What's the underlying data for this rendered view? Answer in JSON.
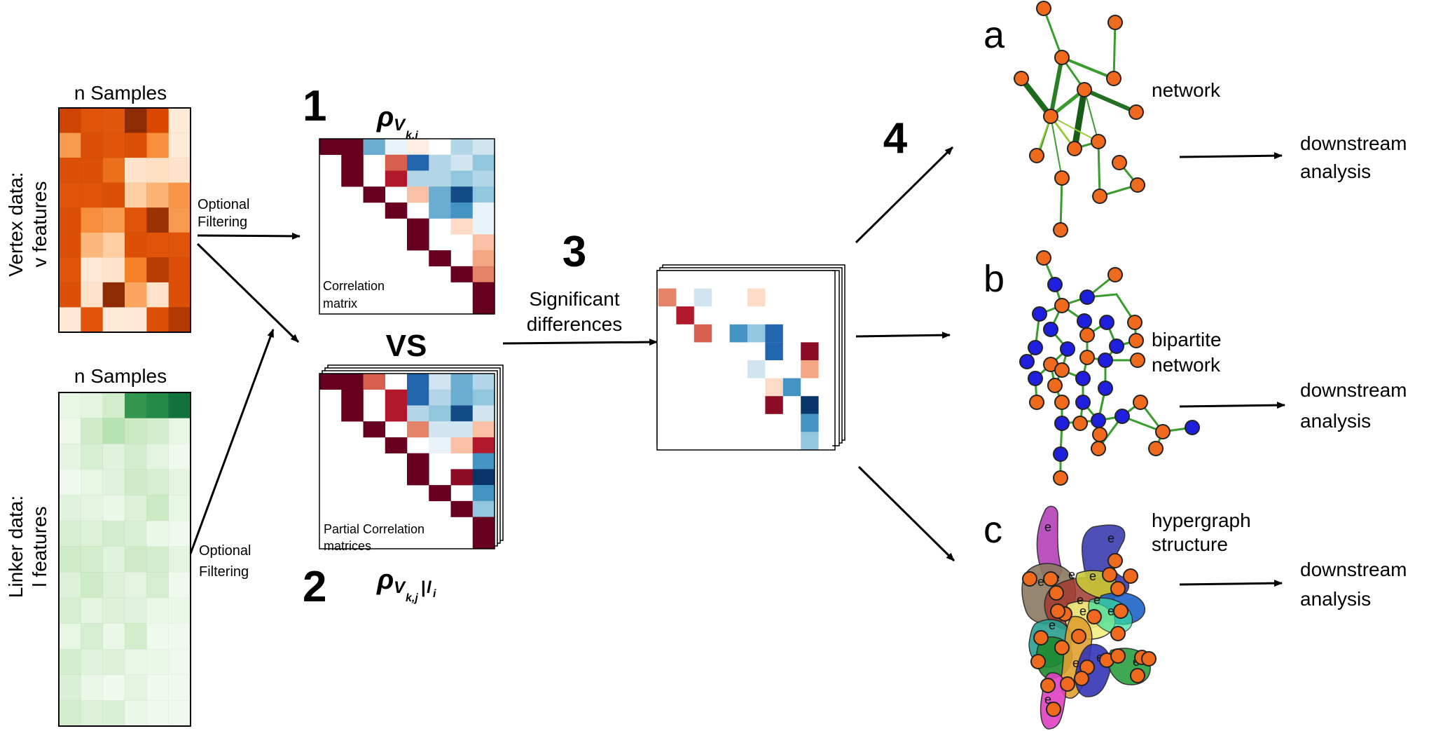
{
  "vertex_panel": {
    "samples_label": "n Samples",
    "axis_label_line1": "Vertex data:",
    "axis_label_line2": "v features",
    "heatmap": [
      [
        0.78,
        0.7,
        0.68,
        0.96,
        0.75,
        0.05
      ],
      [
        0.4,
        0.72,
        0.7,
        0.72,
        0.45,
        0.05
      ],
      [
        0.72,
        0.72,
        0.58,
        0.08,
        0.1,
        0.08
      ],
      [
        0.7,
        0.7,
        0.72,
        0.18,
        0.3,
        0.42
      ],
      [
        0.72,
        0.45,
        0.4,
        0.7,
        0.92,
        0.4
      ],
      [
        0.72,
        0.28,
        0.18,
        0.72,
        0.7,
        0.7
      ],
      [
        0.7,
        0.06,
        0.08,
        0.5,
        0.85,
        0.72
      ],
      [
        0.72,
        0.08,
        0.96,
        0.35,
        0.08,
        0.72
      ],
      [
        0.06,
        0.7,
        0.05,
        0.06,
        0.72,
        0.86
      ]
    ]
  },
  "linker_panel": {
    "samples_label": "n Samples",
    "axis_label_line1": "Linker data:",
    "axis_label_line2": "l features",
    "heatmap": [
      [
        0.08,
        0.1,
        0.2,
        0.7,
        0.75,
        0.88
      ],
      [
        0.05,
        0.22,
        0.3,
        0.24,
        0.2,
        0.08
      ],
      [
        0.1,
        0.18,
        0.12,
        0.2,
        0.1,
        0.04
      ],
      [
        0.04,
        0.08,
        0.12,
        0.22,
        0.18,
        0.1
      ],
      [
        0.12,
        0.1,
        0.06,
        0.14,
        0.24,
        0.08
      ],
      [
        0.18,
        0.14,
        0.2,
        0.16,
        0.06,
        0.04
      ],
      [
        0.22,
        0.2,
        0.12,
        0.22,
        0.2,
        0.1
      ],
      [
        0.14,
        0.22,
        0.14,
        0.1,
        0.18,
        0.04
      ],
      [
        0.18,
        0.1,
        0.14,
        0.12,
        0.06,
        0.06
      ],
      [
        0.08,
        0.18,
        0.06,
        0.2,
        0.04,
        0.04
      ],
      [
        0.2,
        0.12,
        0.14,
        0.06,
        0.06,
        0.04
      ],
      [
        0.16,
        0.06,
        0.04,
        0.1,
        0.04,
        0.04
      ],
      [
        0.2,
        0.14,
        0.16,
        0.06,
        0.04,
        0.04
      ]
    ]
  },
  "filtering": {
    "top_line1": "Optional",
    "top_line2": "Filtering",
    "bottom_line1": "Optional",
    "bottom_line2": "Filtering"
  },
  "step1": {
    "number": "1",
    "rho": "ρ",
    "sub_v": "V",
    "sub_kj": "k,j",
    "caption_line1": "Correlation",
    "caption_line2": "matrix",
    "upper": [
      [
        0,
        0,
        -0.5,
        -0.1,
        0.1,
        0.0,
        -0.3,
        -0.2
      ],
      [
        0,
        0,
        0,
        0.6,
        -0.8,
        -0.3,
        -0.2,
        -0.4
      ],
      [
        0,
        0,
        0,
        0.8,
        -0.3,
        -0.3,
        -0.4,
        -0.3
      ],
      [
        0,
        0,
        0,
        0,
        0.3,
        -0.5,
        -0.9,
        -0.4
      ],
      [
        0,
        0,
        0,
        0,
        0,
        -0.5,
        -0.6,
        -0.1
      ],
      [
        0,
        0,
        0,
        0,
        0,
        0,
        0.2,
        -0.1
      ],
      [
        0,
        0,
        0,
        0,
        0,
        0,
        0.0,
        0.3
      ],
      [
        0,
        0,
        0,
        0,
        0,
        0,
        0,
        0.4
      ],
      [
        0,
        0,
        0,
        0,
        0,
        0,
        0,
        0.5
      ],
      [
        0,
        0,
        0,
        0,
        0,
        0,
        0,
        0
      ],
      [
        0,
        0,
        0,
        0,
        0,
        0,
        0,
        0
      ]
    ]
  },
  "vs_label": "VS",
  "step2": {
    "number": "2",
    "rho": "ρ",
    "sub_v": "V",
    "sub_kj": "k,j",
    "sub_bar": "|",
    "sub_l": "l",
    "sub_i": "i",
    "caption_line1": "Partial Correlation",
    "caption_line2": "matrices",
    "upper": [
      [
        0,
        0,
        0.6,
        0.0,
        -0.8,
        -0.2,
        -0.5,
        -0.3
      ],
      [
        0,
        0,
        0,
        0.8,
        -0.8,
        -0.3,
        -0.5,
        -0.4
      ],
      [
        0,
        0,
        0,
        0.8,
        -0.3,
        -0.4,
        -0.9,
        -0.2
      ],
      [
        0,
        0,
        0,
        0,
        0.5,
        -0.2,
        -0.2,
        0.3
      ],
      [
        0,
        0,
        0,
        0,
        0,
        -0.1,
        0.3,
        0.8
      ],
      [
        0,
        0,
        0,
        0,
        0,
        0,
        0.0,
        -0.6
      ],
      [
        0,
        0,
        0,
        0,
        0,
        0,
        0.9,
        -0.98
      ],
      [
        0,
        0,
        0,
        0,
        0,
        0,
        0,
        -0.6
      ],
      [
        0,
        0,
        0,
        0,
        0,
        0,
        0,
        -0.4
      ],
      [
        0,
        0,
        0,
        0,
        0,
        0,
        0,
        0
      ],
      [
        0,
        0,
        0,
        0,
        0,
        0,
        0,
        0
      ]
    ]
  },
  "step3": {
    "number": "3",
    "label_line1": "Significant",
    "label_line2": "differences",
    "cells": [
      [
        1,
        0,
        0.5
      ],
      [
        1,
        2,
        -0.2
      ],
      [
        1,
        5,
        0.2
      ],
      [
        2,
        1,
        0.8
      ],
      [
        3,
        2,
        0.6
      ],
      [
        3,
        4,
        -0.6
      ],
      [
        3,
        5,
        -0.4
      ],
      [
        3,
        6,
        -0.8
      ],
      [
        4,
        6,
        -0.8
      ],
      [
        4,
        8,
        0.9
      ],
      [
        5,
        5,
        -0.2
      ],
      [
        5,
        8,
        0.4
      ],
      [
        6,
        6,
        0.2
      ],
      [
        6,
        7,
        -0.6
      ],
      [
        7,
        6,
        0.9
      ],
      [
        7,
        8,
        -0.98
      ],
      [
        8,
        8,
        -0.6
      ],
      [
        9,
        8,
        -0.4
      ]
    ]
  },
  "step4": {
    "number": "4"
  },
  "outputs": [
    {
      "letter": "a",
      "label_line1": "network",
      "label_line2": "",
      "downstream_line1": "downstream",
      "downstream_line2": "analysis"
    },
    {
      "letter": "b",
      "label_line1": "bipartite",
      "label_line2": "network",
      "downstream_line1": "downstream",
      "downstream_line2": "analysis"
    },
    {
      "letter": "c",
      "label_line1": "hypergraph",
      "label_line2": "structure",
      "downstream_line1": "downstream",
      "downstream_line2": "analysis"
    }
  ],
  "hyperedge_marker": "e",
  "colors": {
    "orange_node": "#f06a1e",
    "blue_node": "#1f1fe0",
    "edge_green": "#2e8b2e",
    "strong_red": "#67001f",
    "strong_blue": "#053061"
  }
}
